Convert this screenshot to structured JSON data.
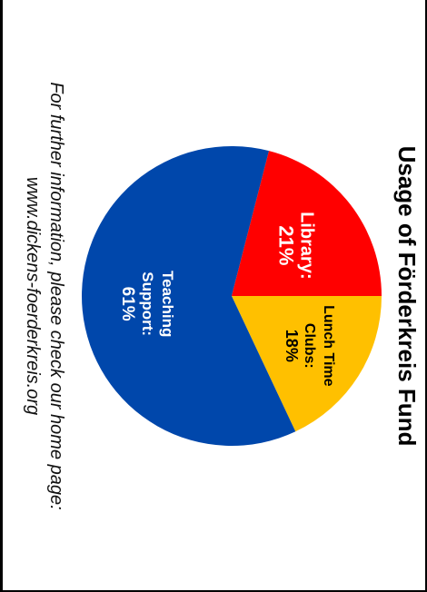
{
  "chart_data": {
    "type": "pie",
    "title": "Usage of Förderkreis Fund",
    "slices": [
      {
        "label_lines": [
          "Lunch Time",
          "Clubs:",
          "18%"
        ],
        "value": 18,
        "color": "#ffc000",
        "text_color": "#000000"
      },
      {
        "label_lines": [
          "Teaching",
          "Support:",
          "61%"
        ],
        "value": 61,
        "color": "#0047ab",
        "text_color": "#ffffff"
      },
      {
        "label_lines": [
          "Library:",
          "21%"
        ],
        "value": 21,
        "color": "#ff0000",
        "text_color": "#ffffff"
      }
    ],
    "start_angle_deg": 0
  },
  "footer": {
    "line1": "For further information, please check our home page:",
    "line2": "www.dickens-foerderkreis.org"
  }
}
